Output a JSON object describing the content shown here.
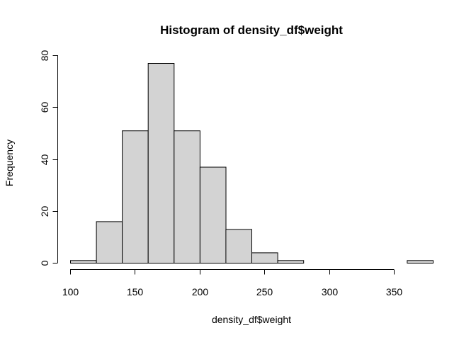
{
  "chart_data": {
    "type": "bar",
    "title": "Histogram of density_df$weight",
    "xlabel": "density_df$weight",
    "ylabel": "Frequency",
    "bin_edges": [
      100,
      120,
      140,
      160,
      180,
      200,
      220,
      240,
      260,
      280,
      300,
      320,
      340,
      360,
      380
    ],
    "values": [
      1,
      16,
      51,
      77,
      51,
      37,
      13,
      4,
      1,
      0,
      0,
      0,
      0,
      1
    ],
    "xlim": [
      100,
      380
    ],
    "ylim": [
      0,
      80
    ],
    "x_ticks": [
      100,
      150,
      200,
      250,
      300,
      350
    ],
    "y_ticks": [
      0,
      20,
      40,
      60,
      80
    ],
    "grid": false,
    "bar_color": "#d3d3d3",
    "bar_border_color": "#000000"
  }
}
